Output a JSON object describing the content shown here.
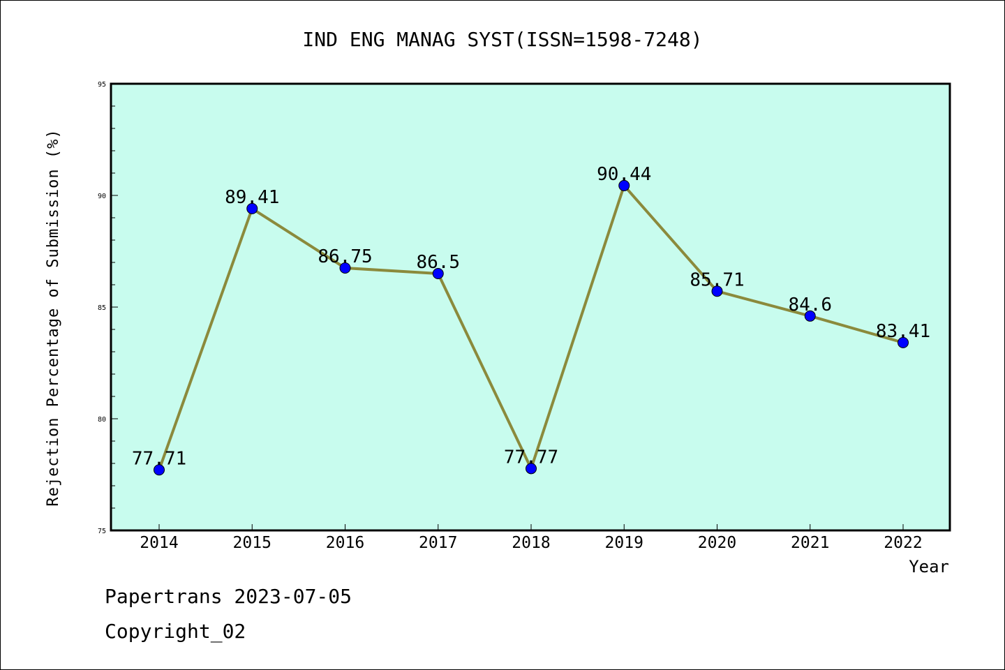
{
  "chart_data": {
    "type": "line",
    "title": "IND ENG MANAG SYST(ISSN=1598-7248)",
    "xlabel": "Year",
    "ylabel": "Rejection Percentage of Submission (%)",
    "categories": [
      "2014",
      "2015",
      "2016",
      "2017",
      "2018",
      "2019",
      "2020",
      "2021",
      "2022"
    ],
    "series": [
      {
        "values": [
          77.71,
          89.41,
          86.75,
          86.5,
          77.77,
          90.44,
          85.71,
          84.6,
          83.41
        ],
        "labels": [
          "77.71",
          "89.41",
          "86.75",
          "86.5",
          "77.77",
          "90.44",
          "85.71",
          "84.6",
          "83.41"
        ]
      }
    ],
    "ylim": [
      75,
      95
    ],
    "yticks": [
      "75",
      "80",
      "85",
      "90",
      "95"
    ],
    "grid": false,
    "colors": {
      "plot_background": "#c8fcee",
      "line": "#8b8a3c",
      "marker": "#0000ff"
    }
  },
  "footer": {
    "line1": "Papertrans 2023-07-05",
    "line2": "Copyright_02"
  }
}
